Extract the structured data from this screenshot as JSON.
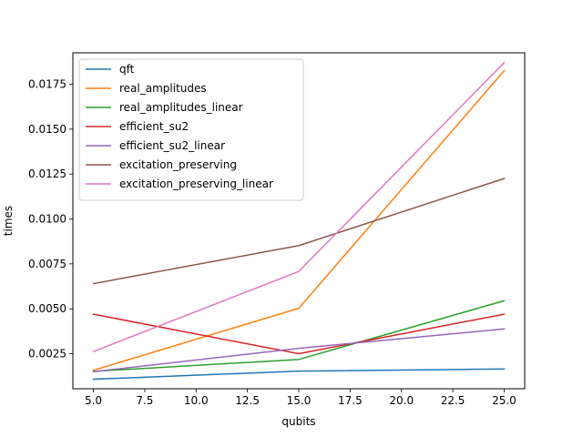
{
  "chart_data": {
    "type": "line",
    "title": "",
    "xlabel": "qubits",
    "ylabel": "times",
    "x": [
      5,
      15,
      25
    ],
    "xlim": [
      4.0,
      26.0
    ],
    "ylim": [
      0.00055,
      0.01925
    ],
    "x_ticks": [
      5.0,
      7.5,
      10.0,
      12.5,
      15.0,
      17.5,
      20.0,
      22.5,
      25.0
    ],
    "x_tick_labels": [
      "5.0",
      "7.5",
      "10.0",
      "12.5",
      "15.0",
      "17.5",
      "20.0",
      "22.5",
      "25.0"
    ],
    "y_ticks": [
      0.0025,
      0.005,
      0.0075,
      0.01,
      0.0125,
      0.015,
      0.0175
    ],
    "y_tick_labels": [
      "0.0025",
      "0.0050",
      "0.0075",
      "0.0100",
      "0.0125",
      "0.0150",
      "0.0175"
    ],
    "grid": false,
    "legend_position": "upper-left",
    "series": [
      {
        "name": "qft",
        "color": "#1f77b4",
        "values": [
          0.00108,
          0.00153,
          0.00165
        ]
      },
      {
        "name": "real_amplitudes",
        "color": "#ff7f0e",
        "values": [
          0.00158,
          0.00503,
          0.01825
        ]
      },
      {
        "name": "real_amplitudes_linear",
        "color": "#2ca02c",
        "values": [
          0.00152,
          0.00218,
          0.00545
        ]
      },
      {
        "name": "efficient_su2",
        "color": "#d62728",
        "values": [
          0.0047,
          0.0025,
          0.0047
        ]
      },
      {
        "name": "efficient_su2_linear",
        "color": "#9467bd",
        "values": [
          0.0015,
          0.0028,
          0.00388
        ]
      },
      {
        "name": "excitation_preserving",
        "color": "#8c564b",
        "values": [
          0.0064,
          0.00852,
          0.01225
        ]
      },
      {
        "name": "excitation_preserving_linear",
        "color": "#e377c2",
        "values": [
          0.00262,
          0.00708,
          0.0187
        ]
      }
    ]
  }
}
